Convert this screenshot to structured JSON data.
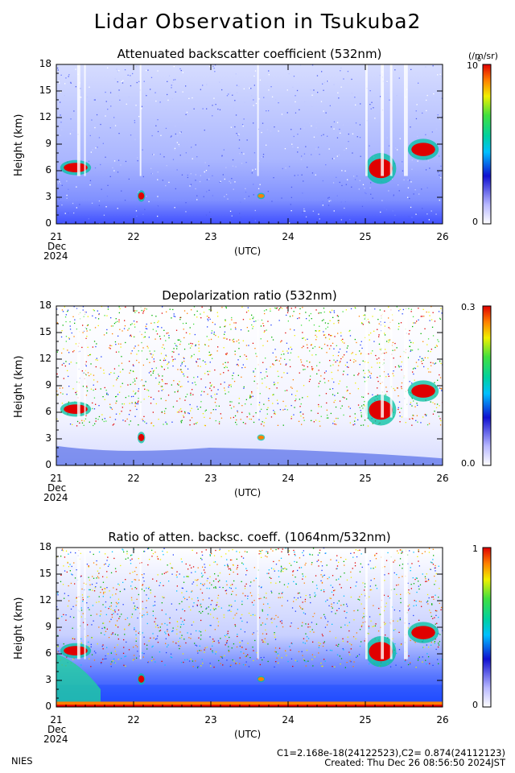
{
  "title": "Lidar Observation in Tsukuba2",
  "footer": {
    "org": "NIES",
    "calib": "C1=2.168e-18(24122523),C2= 0.874(24112123)",
    "created": "Created: Thu Dec 26 08:56:50 2024JST"
  },
  "chart_data": [
    {
      "type": "heatmap",
      "title": "Attenuated backscatter coefficient (532nm)",
      "ylabel": "Height (km)",
      "xlabel": "(UTC)",
      "x_ticks": [
        "21",
        "22",
        "23",
        "24",
        "25",
        "26"
      ],
      "x_date_label": [
        "Dec",
        "2024"
      ],
      "xlim": [
        21,
        26
      ],
      "y_ticks": [
        "0",
        "3",
        "6",
        "9",
        "12",
        "15",
        "18"
      ],
      "ylim": [
        0,
        18
      ],
      "colorbar": {
        "min_label": "0",
        "max_label": "10",
        "max_exp": "-6",
        "unit": "(/m/sr)"
      },
      "features": [
        {
          "desc": "cloud layer",
          "x": [
            21.05,
            21.45
          ],
          "y": [
            5.5,
            7.2
          ]
        },
        {
          "desc": "cloud",
          "x": [
            22.05,
            22.15
          ],
          "y": [
            2.5,
            3.8
          ]
        },
        {
          "desc": "cloud",
          "x": [
            23.6,
            23.8
          ],
          "y": [
            2.8,
            3.5
          ]
        },
        {
          "desc": "cloud layer",
          "x": [
            25.0,
            25.4
          ],
          "y": [
            4.5,
            8.5
          ]
        },
        {
          "desc": "cloud layer",
          "x": [
            25.6,
            25.95
          ],
          "y": [
            7.0,
            9.5
          ]
        },
        {
          "desc": "boundary layer",
          "x": [
            21.0,
            26.0
          ],
          "y": [
            0.0,
            1.5
          ]
        }
      ]
    },
    {
      "type": "heatmap",
      "title": "Depolarization ratio (532nm)",
      "ylabel": "Height (km)",
      "xlabel": "(UTC)",
      "x_ticks": [
        "21",
        "22",
        "23",
        "24",
        "25",
        "26"
      ],
      "x_date_label": [
        "Dec",
        "2024"
      ],
      "xlim": [
        21,
        26
      ],
      "y_ticks": [
        "0",
        "3",
        "6",
        "9",
        "12",
        "15",
        "18"
      ],
      "ylim": [
        0,
        18
      ],
      "colorbar": {
        "min_label": "0.0",
        "max_label": "0.3"
      }
    },
    {
      "type": "heatmap",
      "title": "Ratio of atten. backsc. coeff. (1064nm/532nm)",
      "ylabel": "Height (km)",
      "xlabel": "(UTC)",
      "x_ticks": [
        "21",
        "22",
        "23",
        "24",
        "25",
        "26"
      ],
      "x_date_label": [
        "Dec",
        "2024"
      ],
      "xlim": [
        21,
        26
      ],
      "y_ticks": [
        "0",
        "3",
        "6",
        "9",
        "12",
        "15",
        "18"
      ],
      "ylim": [
        0,
        18
      ],
      "colorbar": {
        "min_label": "0",
        "max_label": "1"
      }
    }
  ]
}
